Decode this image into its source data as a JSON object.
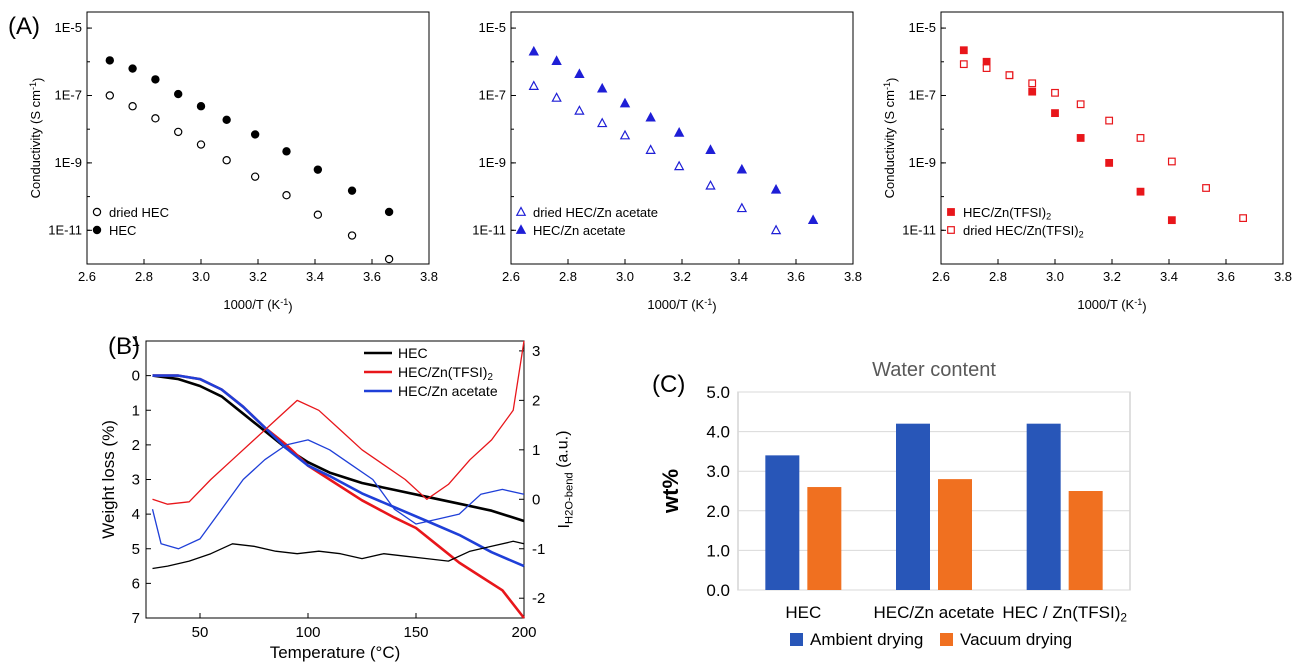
{
  "figure": {
    "panel_labels": [
      "(A)",
      "(B)",
      "(C)"
    ]
  },
  "chart_data": [
    {
      "id": "A1",
      "type": "scatter",
      "title": "",
      "xlabel": "1000/T (K-1)",
      "ylabel": "Conductivity (S cm-1)",
      "xlim": [
        2.6,
        3.8
      ],
      "xticks": [
        2.6,
        2.8,
        3.0,
        3.2,
        3.4,
        3.6,
        3.8
      ],
      "xtick_labels": [
        "2.6",
        "2.8",
        "3.0",
        "3.2",
        "3.4",
        "3.6",
        "3.8"
      ],
      "yscale": "log",
      "ylim": [
        1e-12,
        3e-05
      ],
      "yticks": [
        1e-05,
        1e-07,
        1e-09,
        1e-11
      ],
      "ytick_labels": [
        "1E-5",
        "1E-7",
        "1E-9",
        "1E-11"
      ],
      "legend_position": "bottom-left",
      "series": [
        {
          "name": "dried HEC",
          "marker": "circle-open",
          "color": "#000000",
          "x": [
            2.68,
            2.76,
            2.84,
            2.92,
            3.0,
            3.09,
            3.19,
            3.3,
            3.41,
            3.53,
            3.66
          ],
          "y": [
            1e-07,
            4.8e-08,
            2.1e-08,
            8.3e-09,
            3.5e-09,
            1.2e-09,
            3.9e-10,
            1.1e-10,
            2.9e-11,
            7e-12,
            1.4e-12
          ]
        },
        {
          "name": "HEC",
          "marker": "circle-filled",
          "color": "#000000",
          "x": [
            2.68,
            2.76,
            2.84,
            2.92,
            3.0,
            3.09,
            3.19,
            3.3,
            3.41,
            3.53,
            3.66
          ],
          "y": [
            1.1e-06,
            6.3e-07,
            3e-07,
            1.1e-07,
            4.8e-08,
            1.9e-08,
            7e-09,
            2.2e-09,
            6.3e-10,
            1.5e-10,
            3.5e-11
          ]
        }
      ]
    },
    {
      "id": "A2",
      "type": "scatter",
      "title": "",
      "xlabel": "1000/T (K-1)",
      "ylabel": "",
      "xlim": [
        2.6,
        3.8
      ],
      "xticks": [
        2.6,
        2.8,
        3.0,
        3.2,
        3.4,
        3.6,
        3.8
      ],
      "xtick_labels": [
        "2.6",
        "2.8",
        "3.0",
        "3.2",
        "3.4",
        "3.6",
        "3.8"
      ],
      "yscale": "log",
      "ylim": [
        1e-12,
        3e-05
      ],
      "yticks": [
        1e-05,
        1e-07,
        1e-09,
        1e-11
      ],
      "ytick_labels": [
        "1E-5",
        "1E-7",
        "1E-9",
        "1E-11"
      ],
      "legend_position": "bottom-left",
      "series": [
        {
          "name": "dried HEC/Zn acetate",
          "marker": "triangle-open",
          "color": "#1f1fd6",
          "x": [
            2.68,
            2.76,
            2.84,
            2.92,
            3.0,
            3.09,
            3.19,
            3.3,
            3.41,
            3.53
          ],
          "y": [
            1.9e-07,
            8.5e-08,
            3.5e-08,
            1.5e-08,
            6.5e-09,
            2.4e-09,
            7.9e-10,
            2.1e-10,
            4.5e-11,
            1e-11
          ]
        },
        {
          "name": "HEC/Zn acetate",
          "marker": "triangle-filled",
          "color": "#1f1fd6",
          "x": [
            2.68,
            2.76,
            2.84,
            2.92,
            3.0,
            3.09,
            3.19,
            3.3,
            3.41,
            3.53,
            3.66
          ],
          "y": [
            2e-06,
            1.05e-06,
            4.3e-07,
            1.6e-07,
            5.8e-08,
            2.2e-08,
            7.8e-09,
            2.4e-09,
            6.3e-10,
            1.6e-10,
            2e-11
          ]
        }
      ]
    },
    {
      "id": "A3",
      "type": "scatter",
      "title": "",
      "xlabel": "1000/T (K-1)",
      "ylabel": "Conductivity (S cm-1)",
      "xlim": [
        2.6,
        3.8
      ],
      "xticks": [
        2.6,
        2.8,
        3.0,
        3.2,
        3.4,
        3.6,
        3.8
      ],
      "xtick_labels": [
        "2.6",
        "2.8",
        "3.0",
        "3.2",
        "3.4",
        "3.6",
        "3.8"
      ],
      "yscale": "log",
      "ylim": [
        1e-12,
        3e-05
      ],
      "yticks": [
        1e-05,
        1e-07,
        1e-09,
        1e-11
      ],
      "ytick_labels": [
        "1E-5",
        "1E-7",
        "1E-9",
        "1E-11"
      ],
      "legend_position": "bottom-left",
      "series": [
        {
          "name": "HEC/Zn(TFSI)2",
          "marker": "square-filled",
          "color": "#e8161b",
          "x": [
            2.68,
            2.76,
            2.84,
            2.92,
            3.0,
            3.09,
            3.19,
            3.3,
            3.41
          ],
          "y": [
            2.2e-06,
            1e-06,
            4e-07,
            1.3e-07,
            3e-08,
            5.5e-09,
            1e-09,
            1.4e-10,
            2e-11
          ]
        },
        {
          "name": "dried HEC/Zn(TFSI)2",
          "marker": "square-open",
          "color": "#e8161b",
          "x": [
            2.68,
            2.76,
            2.84,
            2.92,
            3.0,
            3.09,
            3.19,
            3.3,
            3.41,
            3.53,
            3.66
          ],
          "y": [
            8.5e-07,
            6.5e-07,
            4e-07,
            2.3e-07,
            1.2e-07,
            5.5e-08,
            1.8e-08,
            5.5e-09,
            1.1e-09,
            1.8e-10,
            2.3e-11
          ]
        }
      ]
    },
    {
      "id": "B",
      "type": "line",
      "title": "",
      "xlabel": "Temperature (°C)",
      "ylabel": "Weight loss (%)",
      "y2label": "I H2O-bend (a.u.)",
      "xlim": [
        25,
        200
      ],
      "xticks": [
        50,
        100,
        150,
        200
      ],
      "xtick_labels": [
        "50",
        "100",
        "150",
        "200"
      ],
      "ylim": [
        7,
        -1
      ],
      "yticks": [
        -1,
        0,
        1,
        2,
        3,
        4,
        5,
        6,
        7
      ],
      "ytick_labels": [
        "-1",
        "0",
        "1",
        "2",
        "3",
        "4",
        "5",
        "6",
        "7"
      ],
      "y2lim": [
        -2.4,
        3.2
      ],
      "y2ticks": [
        -2,
        -1,
        0,
        1,
        2,
        3
      ],
      "y2tick_labels": [
        "-2",
        "-1",
        "0",
        "1",
        "2",
        "3"
      ],
      "legend_position": "top-right",
      "series": [
        {
          "name": "HEC",
          "axis": "left",
          "color": "#000000",
          "x": [
            28,
            40,
            50,
            60,
            70,
            80,
            90,
            100,
            110,
            125,
            140,
            155,
            170,
            185,
            200
          ],
          "y": [
            0,
            0.1,
            0.3,
            0.6,
            1.1,
            1.6,
            2.1,
            2.5,
            2.8,
            3.1,
            3.3,
            3.5,
            3.7,
            3.9,
            4.2
          ]
        },
        {
          "name": "HEC/Zn(TFSI)2",
          "axis": "left",
          "color": "#e8161b",
          "x": [
            28,
            40,
            50,
            60,
            70,
            80,
            90,
            100,
            110,
            125,
            140,
            150,
            160,
            170,
            180,
            190,
            200
          ],
          "y": [
            0,
            0,
            0.1,
            0.4,
            0.9,
            1.5,
            2.0,
            2.6,
            3.0,
            3.6,
            4.1,
            4.4,
            4.9,
            5.4,
            5.8,
            6.2,
            7.0
          ]
        },
        {
          "name": "HEC/Zn acetate",
          "axis": "left",
          "color": "#1f3fd8",
          "x": [
            28,
            40,
            50,
            60,
            70,
            80,
            90,
            100,
            110,
            125,
            140,
            155,
            170,
            185,
            200
          ],
          "y": [
            0,
            0,
            0.1,
            0.4,
            0.9,
            1.5,
            2.1,
            2.6,
            2.9,
            3.4,
            3.8,
            4.2,
            4.6,
            5.1,
            5.5
          ]
        },
        {
          "name": "",
          "axis": "right",
          "color": "#000000",
          "x": [
            28,
            35,
            45,
            55,
            65,
            75,
            85,
            95,
            105,
            115,
            125,
            135,
            145,
            155,
            165,
            175,
            185,
            195,
            200
          ],
          "y": [
            -1.4,
            -1.35,
            -1.25,
            -1.1,
            -0.9,
            -0.95,
            -1.05,
            -1.1,
            -1.05,
            -1.1,
            -1.2,
            -1.1,
            -1.15,
            -1.2,
            -1.25,
            -1.05,
            -0.95,
            -0.85,
            -0.9
          ]
        },
        {
          "name": "",
          "axis": "right",
          "color": "#e8161b",
          "x": [
            28,
            35,
            45,
            55,
            65,
            75,
            85,
            95,
            105,
            115,
            125,
            135,
            145,
            155,
            165,
            175,
            185,
            195,
            200
          ],
          "y": [
            0.0,
            -0.1,
            -0.05,
            0.4,
            0.8,
            1.2,
            1.6,
            2.0,
            1.8,
            1.4,
            1.0,
            0.7,
            0.4,
            0.0,
            0.3,
            0.8,
            1.2,
            1.8,
            3.2
          ]
        },
        {
          "name": "",
          "axis": "right",
          "color": "#1f3fd8",
          "x": [
            28,
            32,
            40,
            50,
            60,
            70,
            80,
            90,
            100,
            110,
            120,
            130,
            140,
            150,
            160,
            170,
            180,
            190,
            200
          ],
          "y": [
            -0.2,
            -0.9,
            -1.0,
            -0.8,
            -0.2,
            0.4,
            0.8,
            1.1,
            1.2,
            1.0,
            0.7,
            0.4,
            -0.2,
            -0.5,
            -0.4,
            -0.3,
            0.1,
            0.2,
            0.1
          ]
        }
      ]
    },
    {
      "id": "C",
      "type": "bar",
      "title": "Water content",
      "xlabel": "",
      "ylabel": "wt%",
      "ylim": [
        0,
        5
      ],
      "yticks": [
        0,
        1,
        2,
        3,
        4,
        5
      ],
      "ytick_labels": [
        "0.0",
        "1.0",
        "2.0",
        "3.0",
        "4.0",
        "5.0"
      ],
      "categories": [
        "HEC",
        "HEC/Zn acetate",
        "HEC / Zn(TFSI)2"
      ],
      "legend_position": "bottom",
      "series": [
        {
          "name": "Ambient drying",
          "color": "#2856b8",
          "values": [
            3.4,
            4.2,
            4.2
          ]
        },
        {
          "name": "Vacuum drying",
          "color": "#f07020",
          "values": [
            2.6,
            2.8,
            2.5
          ]
        }
      ]
    }
  ]
}
